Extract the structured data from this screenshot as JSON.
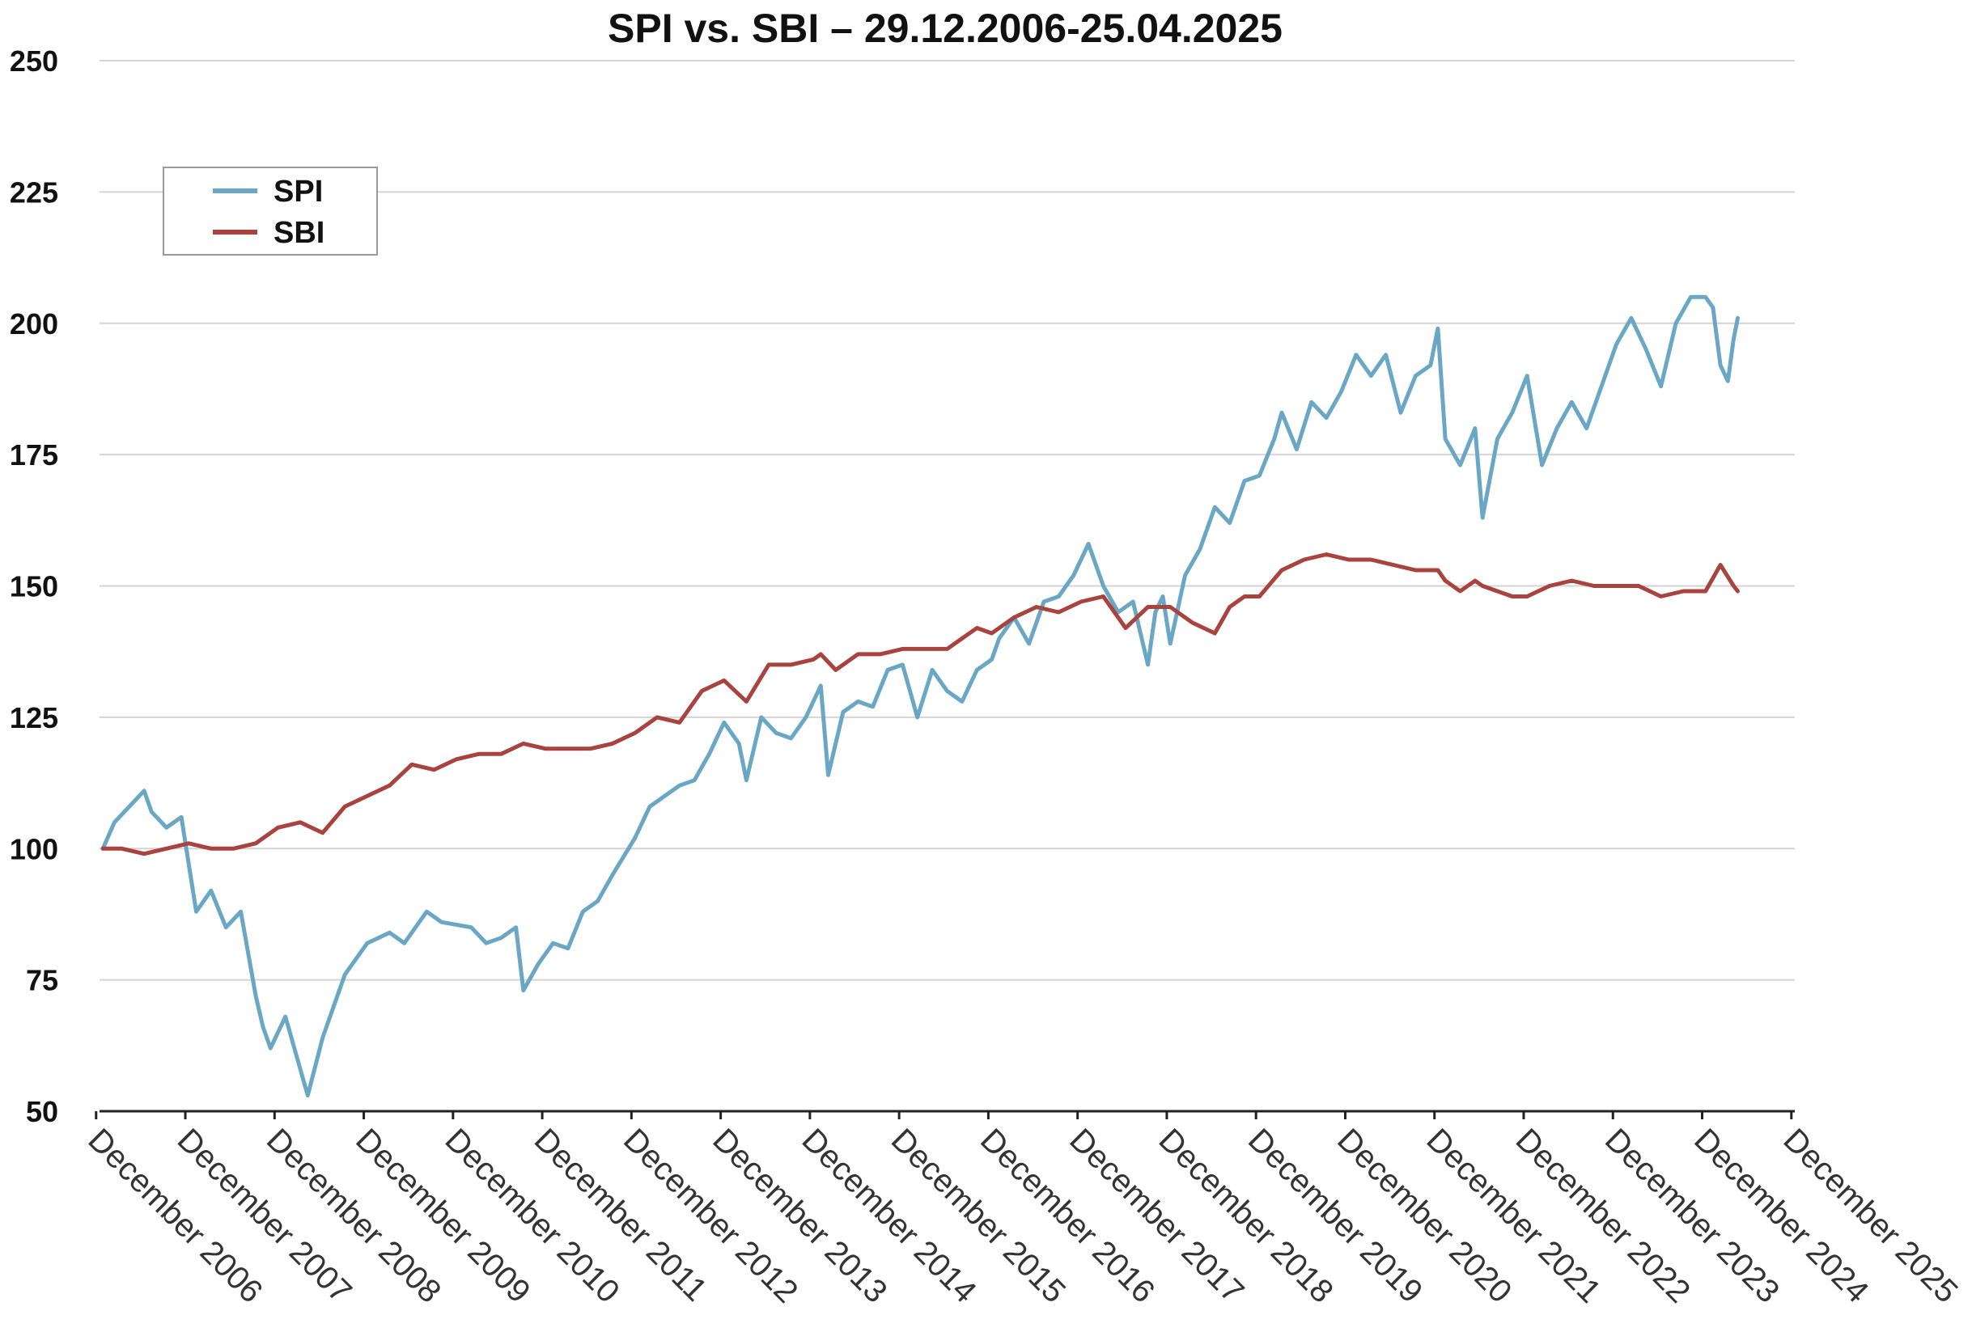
{
  "chart_data": {
    "type": "line",
    "title": "SPI vs. SBI – 29.12.2006-25.04.2025",
    "xlabel": "",
    "ylabel": "",
    "ylim": [
      50,
      250
    ],
    "yticks": [
      "50",
      "75",
      "100",
      "125",
      "150",
      "175",
      "200",
      "225",
      "250"
    ],
    "xlim": [
      "2006-12",
      "2025-12"
    ],
    "xticks": [
      "December 2006",
      "December 2007",
      "December 2008",
      "December 2009",
      "December 2010",
      "December 2011",
      "December 2012",
      "December 2013",
      "December 2014",
      "December 2015",
      "December 2016",
      "December 2017",
      "December 2018",
      "December 2019",
      "December 2020",
      "December 2021",
      "December 2022",
      "December 2023",
      "December 2024",
      "December 2025"
    ],
    "grid": "horizontal",
    "legend": {
      "position": "top-left",
      "entries": [
        "SPI",
        "SBI"
      ]
    },
    "series": [
      {
        "name": "SPI",
        "color": "#6aa7c4",
        "x": [
          "2006-12-29",
          "2007-02",
          "2007-04",
          "2007-06",
          "2007-07",
          "2007-09",
          "2007-11",
          "2008-01",
          "2008-03",
          "2008-05",
          "2008-07",
          "2008-09",
          "2008-10",
          "2008-11",
          "2009-01",
          "2009-03",
          "2009-04",
          "2009-06",
          "2009-09",
          "2009-12",
          "2010-03",
          "2010-05",
          "2010-08",
          "2010-10",
          "2011-02",
          "2011-04",
          "2011-06",
          "2011-08",
          "2011-09",
          "2011-11",
          "2012-01",
          "2012-03",
          "2012-05",
          "2012-07",
          "2012-09",
          "2012-12",
          "2013-02",
          "2013-04",
          "2013-06",
          "2013-08",
          "2013-10",
          "2013-12",
          "2014-02",
          "2014-03",
          "2014-05",
          "2014-07",
          "2014-09",
          "2014-11",
          "2015-01",
          "2015-02",
          "2015-04",
          "2015-06",
          "2015-08",
          "2015-10",
          "2015-12",
          "2016-02",
          "2016-04",
          "2016-06",
          "2016-08",
          "2016-10",
          "2016-12",
          "2017-01",
          "2017-03",
          "2017-05",
          "2017-07",
          "2017-09",
          "2017-11",
          "2018-01",
          "2018-03",
          "2018-05",
          "2018-07",
          "2018-09",
          "2018-10",
          "2018-11",
          "2018-12",
          "2019-02",
          "2019-04",
          "2019-06",
          "2019-08",
          "2019-10",
          "2019-12",
          "2020-02",
          "2020-03",
          "2020-05",
          "2020-07",
          "2020-09",
          "2020-11",
          "2021-01",
          "2021-03",
          "2021-05",
          "2021-07",
          "2021-09",
          "2021-11",
          "2021-12",
          "2022-01",
          "2022-03",
          "2022-05",
          "2022-06",
          "2022-08",
          "2022-10",
          "2022-12",
          "2023-02",
          "2023-04",
          "2023-06",
          "2023-08",
          "2023-10",
          "2023-12",
          "2024-02",
          "2024-04",
          "2024-06",
          "2024-08",
          "2024-10",
          "2024-12",
          "2025-01",
          "2025-02",
          "2025-03",
          "2025-04-08",
          "2025-04-25"
        ],
        "values": [
          100,
          105,
          108,
          111,
          107,
          104,
          106,
          88,
          92,
          85,
          88,
          72,
          66,
          62,
          68,
          58,
          53,
          64,
          76,
          82,
          84,
          82,
          88,
          86,
          85,
          82,
          83,
          85,
          73,
          78,
          82,
          81,
          88,
          90,
          95,
          102,
          108,
          110,
          112,
          113,
          118,
          124,
          120,
          113,
          125,
          122,
          121,
          125,
          131,
          114,
          126,
          128,
          127,
          134,
          135,
          125,
          134,
          130,
          128,
          134,
          136,
          140,
          144,
          139,
          147,
          148,
          152,
          158,
          150,
          145,
          147,
          135,
          145,
          148,
          139,
          152,
          157,
          165,
          162,
          170,
          171,
          178,
          183,
          176,
          185,
          182,
          187,
          194,
          190,
          194,
          183,
          190,
          192,
          199,
          178,
          173,
          180,
          163,
          178,
          183,
          190,
          173,
          180,
          185,
          180,
          188,
          196,
          201,
          195,
          188,
          200,
          205,
          205,
          203,
          192,
          189,
          197,
          201
        ]
      },
      {
        "name": "SBI",
        "color": "#a8433f",
        "x": [
          "2006-12-29",
          "2007-03",
          "2007-06",
          "2007-09",
          "2007-12",
          "2008-03",
          "2008-06",
          "2008-09",
          "2008-12",
          "2009-03",
          "2009-06",
          "2009-09",
          "2009-12",
          "2010-03",
          "2010-06",
          "2010-09",
          "2010-12",
          "2011-03",
          "2011-06",
          "2011-09",
          "2011-12",
          "2012-03",
          "2012-06",
          "2012-09",
          "2012-12",
          "2013-03",
          "2013-06",
          "2013-09",
          "2013-12",
          "2014-03",
          "2014-06",
          "2014-09",
          "2014-12",
          "2015-01",
          "2015-03",
          "2015-06",
          "2015-09",
          "2015-12",
          "2016-03",
          "2016-06",
          "2016-08",
          "2016-10",
          "2016-12",
          "2017-03",
          "2017-06",
          "2017-09",
          "2017-12",
          "2018-03",
          "2018-06",
          "2018-09",
          "2018-12",
          "2019-03",
          "2019-06",
          "2019-08",
          "2019-10",
          "2019-12",
          "2020-03",
          "2020-06",
          "2020-09",
          "2020-12",
          "2021-03",
          "2021-06",
          "2021-09",
          "2021-12",
          "2022-01",
          "2022-03",
          "2022-05",
          "2022-06",
          "2022-08",
          "2022-10",
          "2022-12",
          "2023-03",
          "2023-06",
          "2023-09",
          "2023-12",
          "2024-03",
          "2024-06",
          "2024-09",
          "2024-12",
          "2025-02",
          "2025-04-08",
          "2025-04-25"
        ],
        "values": [
          100,
          100,
          99,
          100,
          101,
          100,
          100,
          101,
          104,
          105,
          103,
          108,
          110,
          112,
          116,
          115,
          117,
          118,
          118,
          120,
          119,
          119,
          119,
          120,
          122,
          125,
          124,
          130,
          132,
          128,
          135,
          135,
          136,
          137,
          134,
          137,
          137,
          138,
          138,
          138,
          140,
          142,
          141,
          144,
          146,
          145,
          147,
          148,
          142,
          146,
          146,
          143,
          141,
          146,
          148,
          148,
          153,
          155,
          156,
          155,
          155,
          154,
          153,
          153,
          151,
          149,
          151,
          150,
          149,
          148,
          148,
          150,
          151,
          150,
          150,
          150,
          148,
          149,
          149,
          154,
          150,
          149
        ]
      }
    ]
  }
}
